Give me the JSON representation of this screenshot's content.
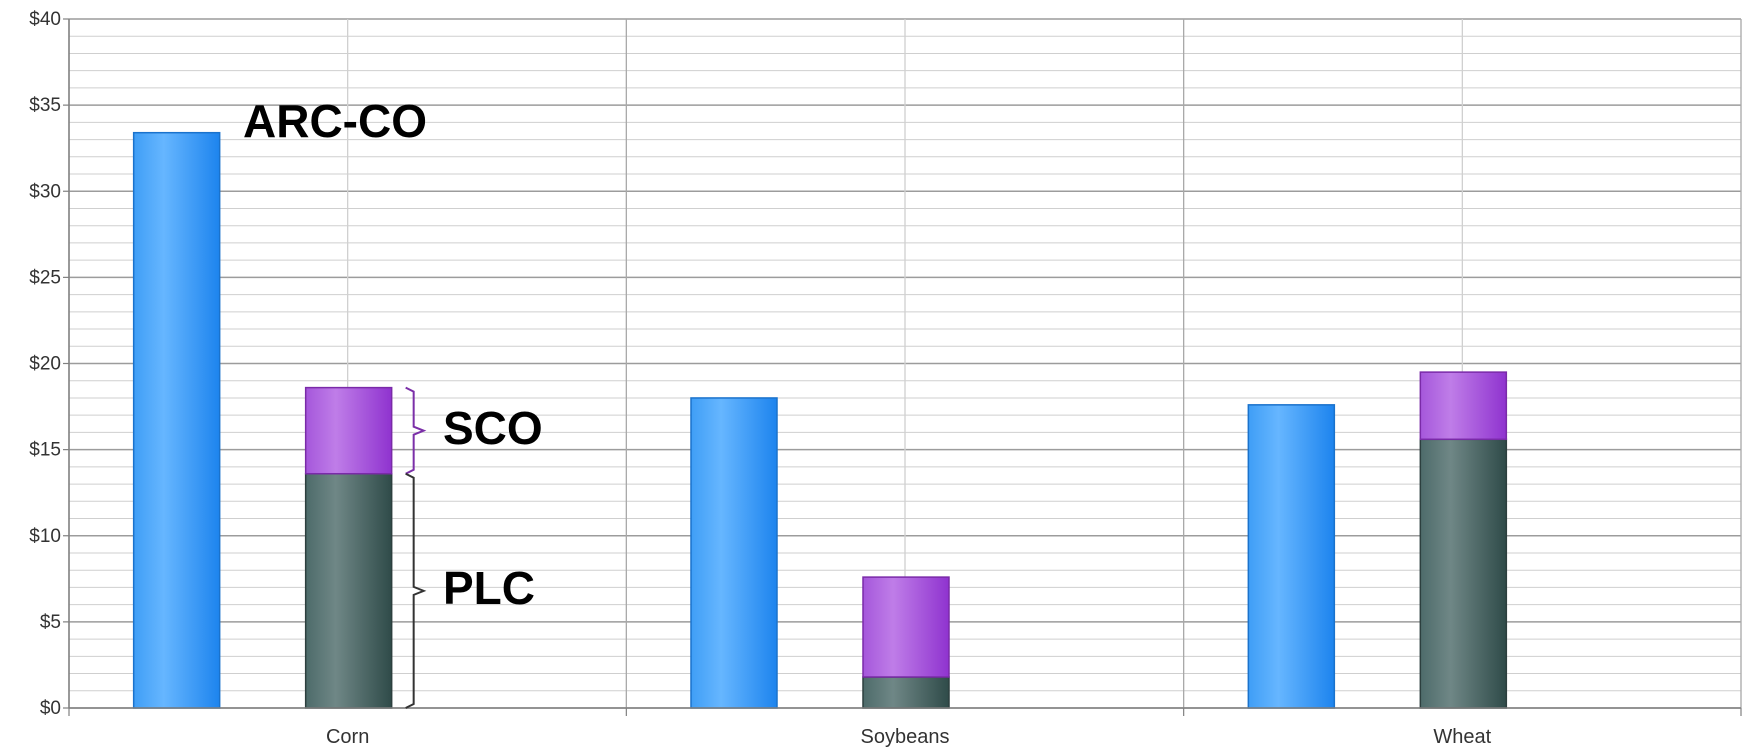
{
  "chart_data": {
    "type": "bar",
    "categories": [
      "Corn",
      "Soybeans",
      "Wheat"
    ],
    "bars": [
      {
        "category": "Corn",
        "group": "ARC-CO",
        "segments": [
          {
            "name": "ARC-CO",
            "value": 33.4
          }
        ]
      },
      {
        "category": "Corn",
        "group": "PLC+SCO",
        "segments": [
          {
            "name": "PLC",
            "value": 13.6
          },
          {
            "name": "SCO",
            "value": 5.0
          }
        ]
      },
      {
        "category": "Soybeans",
        "group": "ARC-CO",
        "segments": [
          {
            "name": "ARC-CO",
            "value": 18.0
          }
        ]
      },
      {
        "category": "Soybeans",
        "group": "PLC+SCO",
        "segments": [
          {
            "name": "PLC",
            "value": 1.8
          },
          {
            "name": "SCO",
            "value": 5.8
          }
        ]
      },
      {
        "category": "Wheat",
        "group": "ARC-CO",
        "segments": [
          {
            "name": "ARC-CO",
            "value": 17.6
          }
        ]
      },
      {
        "category": "Wheat",
        "group": "PLC+SCO",
        "segments": [
          {
            "name": "PLC",
            "value": 15.6
          },
          {
            "name": "SCO",
            "value": 3.9
          }
        ]
      }
    ],
    "annotations": [
      "ARC-CO",
      "SCO",
      "PLC"
    ],
    "ylim": [
      0,
      40
    ],
    "yticks": [
      "$0",
      "$5",
      "$10",
      "$15",
      "$20",
      "$25",
      "$30",
      "$35",
      "$40"
    ],
    "grid": true,
    "colors": {
      "ARC-CO": "#2b8ff0",
      "SCO": "#9e3fd6",
      "PLC": "#3f5e5c",
      "sco_bracket": "#7b2fa8",
      "plc_bracket": "#333333"
    }
  }
}
